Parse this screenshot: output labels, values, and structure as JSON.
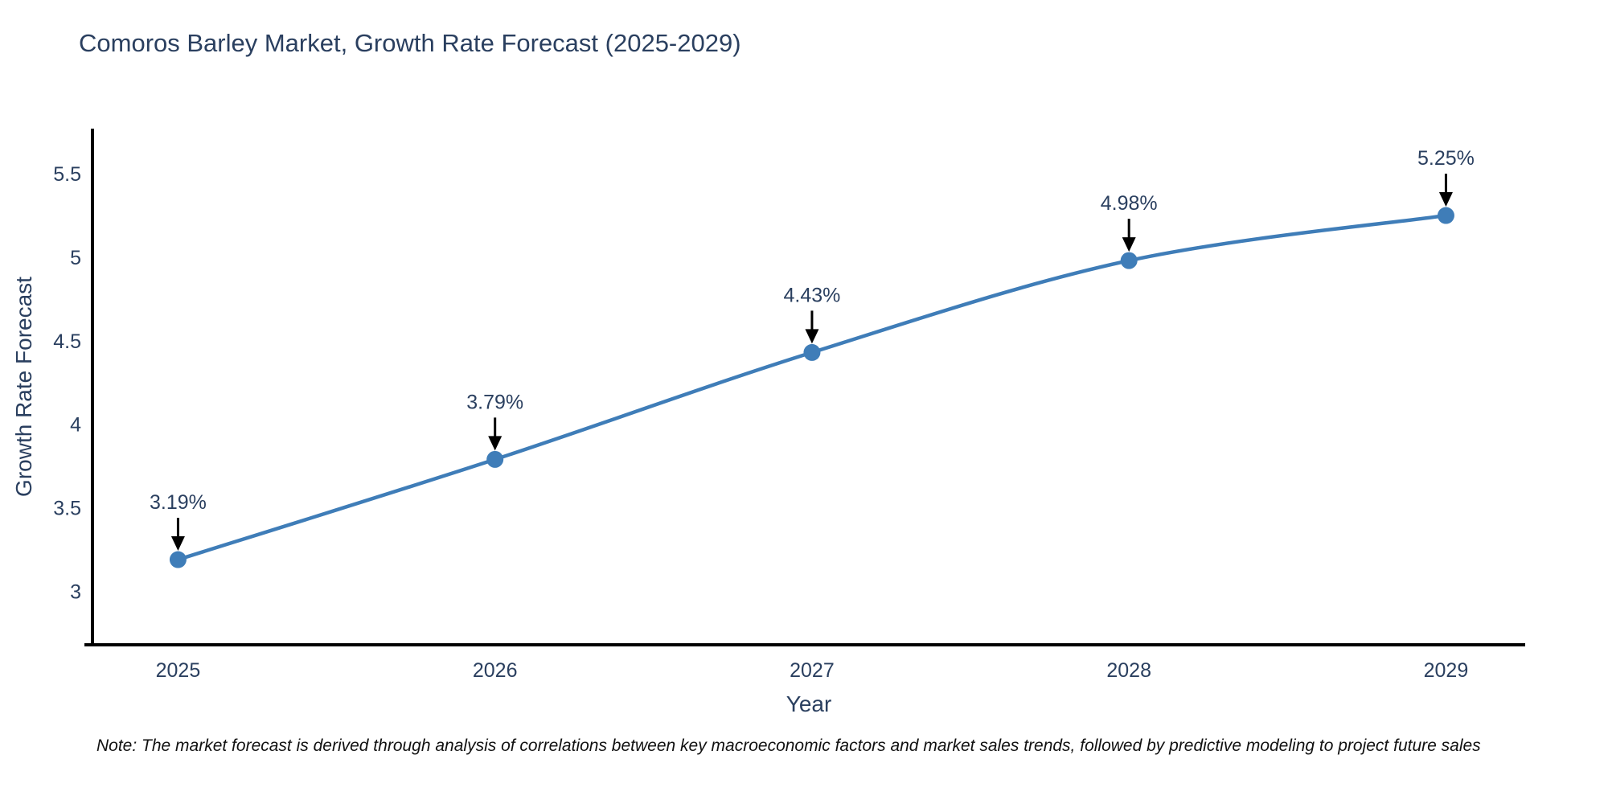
{
  "title": "Comoros Barley Market, Growth Rate Forecast (2025-2029)",
  "note": "Note: The market forecast is derived through analysis of correlations between key macroeconomic factors and market sales trends, followed by predictive modeling to project future sales",
  "chart_data": {
    "type": "line",
    "title": "Comoros Barley Market, Growth Rate Forecast (2025-2029)",
    "x": [
      2025,
      2026,
      2027,
      2028,
      2029
    ],
    "series": [
      {
        "name": "Growth Rate Forecast",
        "values": [
          3.19,
          3.79,
          4.43,
          4.98,
          5.25
        ]
      }
    ],
    "point_labels": [
      "3.19%",
      "3.79%",
      "4.43%",
      "4.98%",
      "5.25%"
    ],
    "xlabel": "Year",
    "ylabel": "Growth Rate Forecast",
    "xtick_labels": [
      "2025",
      "2026",
      "2027",
      "2028",
      "2029"
    ],
    "yticks": [
      3,
      3.5,
      4,
      4.5,
      5,
      5.5
    ],
    "xlim": [
      2024.73,
      2029.25
    ],
    "ylim": [
      2.68,
      5.77
    ],
    "grid": false,
    "legend": "none",
    "line_shape": "spline",
    "line_color": "#3f7db8",
    "marker_color": "#3f7db8",
    "axis_color": "#000000",
    "text_color": "#2a3f5f",
    "annotation_arrow_color": "#000000",
    "background_color": "#ffffff"
  }
}
